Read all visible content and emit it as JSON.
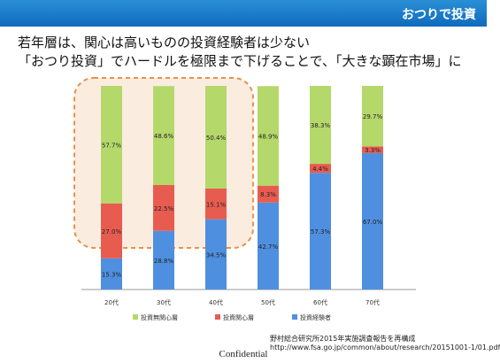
{
  "header": {
    "title": "おつりで投資"
  },
  "headline": {
    "line1": "若年層は、関心は高いものの投資経験者は少ない",
    "line2": "「おつり投資」でハードルを極限まで下げることで、「大きな顕在市場」に"
  },
  "chart_data": {
    "type": "bar",
    "stacked": true,
    "categories": [
      "20代",
      "30代",
      "40代",
      "50代",
      "60代",
      "70代"
    ],
    "series": [
      {
        "name": "投資経験者",
        "color": "#4f8fe0",
        "values": [
          15.3,
          28.8,
          34.5,
          42.7,
          57.3,
          67.0
        ]
      },
      {
        "name": "投資関心層",
        "color": "#e85c50",
        "values": [
          27.0,
          22.5,
          15.1,
          8.3,
          4.4,
          3.3
        ]
      },
      {
        "name": "投資無関心層",
        "color": "#b5d86a",
        "values": [
          57.7,
          48.6,
          50.4,
          48.9,
          38.3,
          29.7
        ]
      }
    ],
    "data_labels": {
      "投資経験者": [
        "15.3%",
        "28.8%",
        "34.5%",
        "42.7%",
        "57.3%",
        "67.0%"
      ],
      "投資関心層": [
        "27.0%",
        "22.5%",
        "15.1%",
        "8.3%",
        "4.4%",
        "3.3%"
      ],
      "投資無関心層": [
        "57.7%",
        "48.6%",
        "50.4%",
        "48.9%",
        "38.3%",
        "29.7%"
      ]
    },
    "legend_order": [
      "投資無関心層",
      "投資関心層",
      "投資経験者"
    ],
    "ylim": [
      0,
      100
    ],
    "highlight_categories": [
      "20代",
      "30代",
      "40代"
    ],
    "highlight_color": "#e8924a",
    "legend_position": "bottom",
    "grid": false
  },
  "source": {
    "line1": "野村総合研究所2015年実施調査報告を再構成",
    "line2": "http://www.fsa.go.jp/common/about/research/20151001-1/01.pdf"
  },
  "footer": {
    "label": "Confidential"
  }
}
